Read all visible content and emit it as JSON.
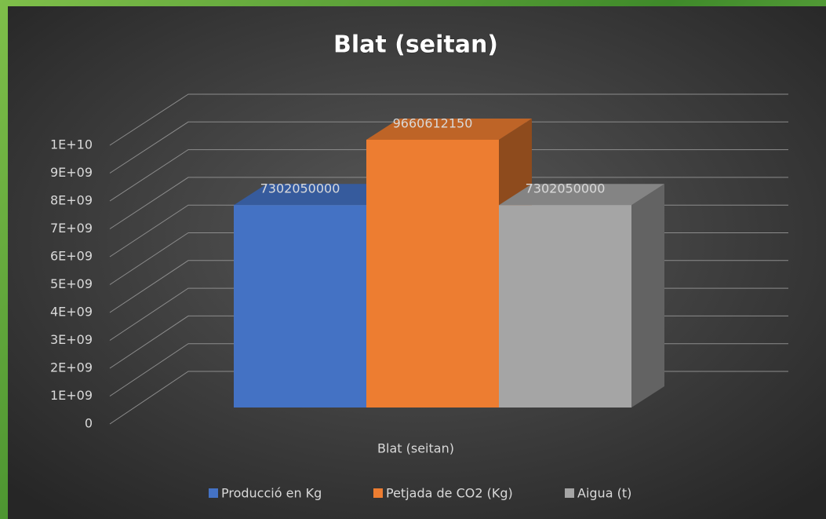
{
  "chart_data": {
    "type": "bar3d",
    "title": "Blat (seitan)",
    "categories": [
      "Blat (seitan)"
    ],
    "series": [
      {
        "name": "Producció en Kg",
        "color": "#4472c4",
        "values": [
          7302050000
        ]
      },
      {
        "name": "Petjada de CO2 (Kg)",
        "color": "#ed7d31",
        "values": [
          9660612150
        ]
      },
      {
        "name": "Aigua (t)",
        "color": "#a5a5a5",
        "values": [
          7302050000
        ]
      }
    ],
    "ylim": [
      0,
      10000000000
    ],
    "yticks": [
      0,
      {
        "value": 1000000000,
        "label": "1E+09"
      },
      {
        "value": 2000000000,
        "label": "2E+09"
      },
      {
        "value": 3000000000,
        "label": "3E+09"
      },
      {
        "value": 4000000000,
        "label": "4E+09"
      },
      {
        "value": 5000000000,
        "label": "5E+09"
      },
      {
        "value": 6000000000,
        "label": "6E+09"
      },
      {
        "value": 7000000000,
        "label": "7E+09"
      },
      {
        "value": 8000000000,
        "label": "8E+09"
      },
      {
        "value": 9000000000,
        "label": "9E+09"
      },
      {
        "value": 10000000000,
        "label": "1E+10"
      }
    ],
    "grid": true,
    "legend": "bottom"
  }
}
